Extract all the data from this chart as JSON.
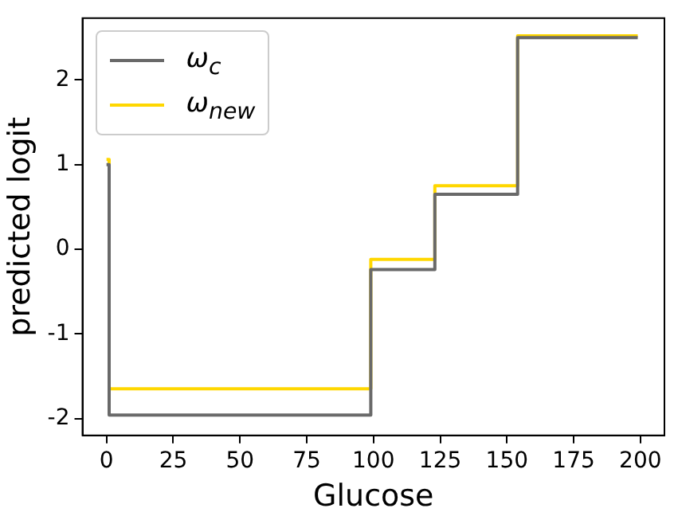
{
  "chart_data": {
    "type": "step",
    "xlabel": "Glucose",
    "ylabel": "predicted logit",
    "x": [
      0,
      1,
      99,
      123,
      154,
      199
    ],
    "series": [
      {
        "name": "ω$_{c}$",
        "color": "#696969",
        "values": [
          1.0,
          -1.96,
          -0.24,
          0.65,
          2.5,
          2.5
        ]
      },
      {
        "name": "ω$_{new}$",
        "color": "#ffd700",
        "values": [
          1.06,
          -1.65,
          -0.12,
          0.75,
          2.52,
          2.52
        ]
      }
    ],
    "xlim": [
      -9,
      209
    ],
    "xticks": [
      0,
      25,
      50,
      75,
      100,
      125,
      150,
      175,
      200
    ],
    "ylim": [
      -2.2,
      2.73
    ],
    "yticks": [
      -2,
      -1,
      0,
      1,
      2
    ],
    "grid": false,
    "legend": "top left",
    "marker": "none",
    "line_style": "solid"
  }
}
